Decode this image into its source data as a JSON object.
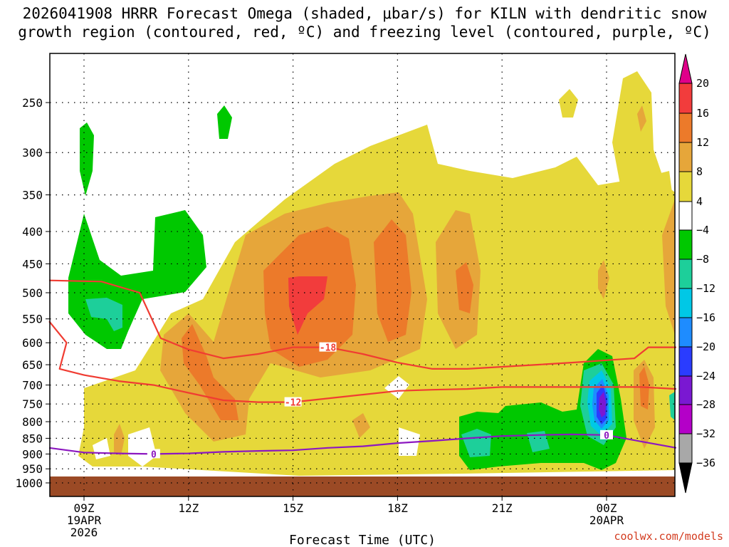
{
  "title_line1": "2026041908 HRRR Forecast Omega (shaded, μbar/s) for KILN with dendritic snow",
  "title_line2": "growth region (contoured, red, ºC) and freezing level (contoured, purple, ºC)",
  "credit": "coolwx.com/models",
  "chart_data": {
    "type": "heatmap",
    "title": "2026041908 HRRR Forecast Omega (shaded, μbar/s) for KILN with dendritic snow growth region (contoured, red, ºC) and freezing level (contoured, purple, ºC)",
    "xlabel": "Forecast Time (UTC)",
    "ylabel": "",
    "x_range_hours": [
      8,
      26
    ],
    "y_range_hpa": [
      200,
      1000
    ],
    "y_scale": "log-pressure",
    "y_ticks": [
      250,
      300,
      350,
      400,
      450,
      500,
      550,
      600,
      650,
      700,
      750,
      800,
      850,
      900,
      950,
      1000
    ],
    "y_tick_labels": [
      "250",
      "300",
      "350",
      "400",
      "450",
      "500",
      "550",
      "600",
      "650",
      "700",
      "750",
      "800",
      "850",
      "900",
      "950",
      "1000"
    ],
    "x_ticks": [
      {
        "hour": 9,
        "line1": "09Z",
        "line2": "19APR",
        "line3": "2026"
      },
      {
        "hour": 12,
        "line1": "12Z",
        "line2": "",
        "line3": ""
      },
      {
        "hour": 15,
        "line1": "15Z",
        "line2": "",
        "line3": ""
      },
      {
        "hour": 18,
        "line1": "18Z",
        "line2": "",
        "line3": ""
      },
      {
        "hour": 21,
        "line1": "21Z",
        "line2": "",
        "line3": ""
      },
      {
        "hour": 24,
        "line1": "00Z",
        "line2": "20APR",
        "line3": ""
      }
    ],
    "colorbar": {
      "levels": [
        20,
        16,
        12,
        8,
        4,
        -4,
        -8,
        -12,
        -16,
        -20,
        -24,
        -28,
        -32,
        -36
      ],
      "labels": [
        "20",
        "16",
        "12",
        "8",
        "4",
        "−4",
        "−8",
        "−12",
        "−16",
        "−20",
        "−24",
        "−28",
        "−32",
        "−36"
      ],
      "colors": [
        "#e0008a",
        "#f23c3c",
        "#ec7a2a",
        "#e6a63a",
        "#e6d83a",
        "#ffffff",
        "#00c800",
        "#1dcf9a",
        "#00c8e6",
        "#1e8cff",
        "#2a3cff",
        "#7a18d2",
        "#b400c8",
        "#a8a8a8",
        "#000000"
      ]
    },
    "contours": [
      {
        "name": "dendritic-minus18",
        "label": "-18",
        "color": "#f03c32",
        "points": [
          [
            8,
            478
          ],
          [
            9.5,
            480
          ],
          [
            10.6,
            500
          ],
          [
            11.2,
            590
          ],
          [
            12,
            615
          ],
          [
            13,
            635
          ],
          [
            14,
            625
          ],
          [
            15,
            610
          ],
          [
            16,
            610
          ],
          [
            17,
            625
          ],
          [
            18,
            645
          ],
          [
            19,
            660
          ],
          [
            20,
            660
          ],
          [
            21,
            655
          ],
          [
            22,
            650
          ],
          [
            23,
            645
          ],
          [
            24.8,
            635
          ],
          [
            25.2,
            610
          ],
          [
            26,
            610
          ]
        ]
      },
      {
        "name": "dendritic-minus12",
        "label": "-12",
        "color": "#f03c32",
        "points": [
          [
            8,
            555
          ],
          [
            8.5,
            600
          ],
          [
            8.3,
            660
          ],
          [
            9,
            675
          ],
          [
            10,
            690
          ],
          [
            11,
            700
          ],
          [
            12,
            720
          ],
          [
            13,
            740
          ],
          [
            14,
            745
          ],
          [
            15,
            745
          ],
          [
            16,
            735
          ],
          [
            17,
            725
          ],
          [
            18,
            715
          ],
          [
            19,
            712
          ],
          [
            20,
            710
          ],
          [
            21,
            705
          ],
          [
            22,
            705
          ],
          [
            23,
            705
          ],
          [
            24,
            705
          ],
          [
            25,
            705
          ],
          [
            26,
            710
          ]
        ]
      },
      {
        "name": "freezing-level-0",
        "label": "0",
        "color": "#8c18c0",
        "points": [
          [
            8,
            880
          ],
          [
            9,
            895
          ],
          [
            10,
            898
          ],
          [
            11,
            900
          ],
          [
            12,
            898
          ],
          [
            13,
            893
          ],
          [
            14,
            890
          ],
          [
            15,
            888
          ],
          [
            16,
            880
          ],
          [
            17,
            875
          ],
          [
            18,
            865
          ],
          [
            19,
            858
          ],
          [
            20,
            850
          ],
          [
            21,
            843
          ],
          [
            22,
            840
          ],
          [
            23,
            838
          ],
          [
            24,
            840
          ],
          [
            25,
            860
          ],
          [
            26,
            880
          ]
        ]
      }
    ]
  }
}
